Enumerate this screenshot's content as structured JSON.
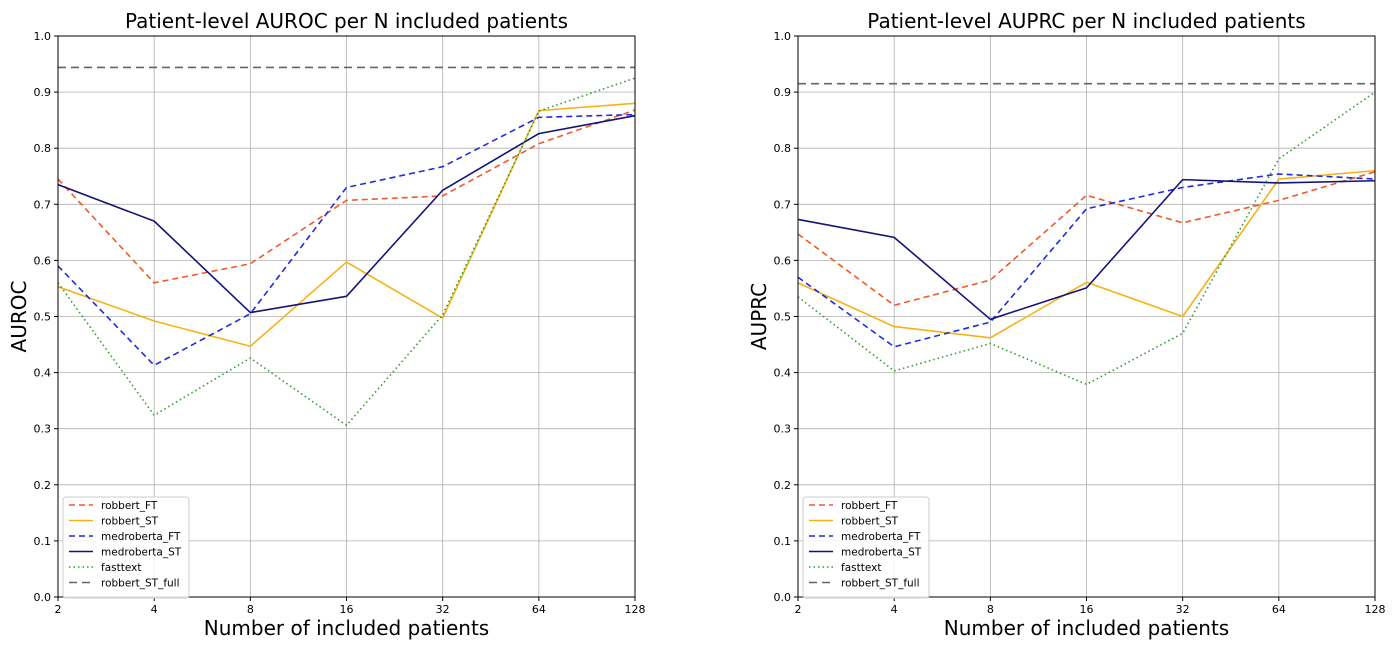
{
  "chart_data": [
    {
      "type": "line",
      "title": "Patient-level AUROC per N included patients",
      "xlabel": "Number of included patients",
      "ylabel": "AUROC",
      "x_scale": "log2",
      "x": [
        2,
        4,
        8,
        16,
        32,
        64,
        128
      ],
      "x_tick_labels": [
        "2",
        "4",
        "8",
        "16",
        "32",
        "64",
        "128"
      ],
      "ylim": [
        0.0,
        1.0
      ],
      "y_tick_labels": [
        "0.0",
        "0.1",
        "0.2",
        "0.3",
        "0.4",
        "0.5",
        "0.6",
        "0.7",
        "0.8",
        "0.9",
        "1.0"
      ],
      "grid": true,
      "legend_position": "lower-left",
      "series": [
        {
          "name": "robbert_FT",
          "color": "#f05a28",
          "style": "dashed",
          "values": [
            0.745,
            0.56,
            0.594,
            0.707,
            0.715,
            0.808,
            0.868
          ]
        },
        {
          "name": "robbert_ST",
          "color": "#f5b215",
          "style": "solid",
          "values": [
            0.553,
            0.492,
            0.447,
            0.597,
            0.497,
            0.867,
            0.88
          ]
        },
        {
          "name": "medroberta_FT",
          "color": "#1f2bde",
          "style": "dashed",
          "values": [
            0.59,
            0.413,
            0.505,
            0.73,
            0.767,
            0.855,
            0.86
          ]
        },
        {
          "name": "medroberta_ST",
          "color": "#14137a",
          "style": "solid",
          "values": [
            0.735,
            0.67,
            0.507,
            0.536,
            0.725,
            0.826,
            0.858
          ]
        },
        {
          "name": "fasttext",
          "color": "#2e9e2e",
          "style": "dotted",
          "values": [
            0.56,
            0.324,
            0.426,
            0.306,
            0.503,
            0.866,
            0.925
          ]
        },
        {
          "name": "robbert_ST_full",
          "color": "#666666",
          "style": "dashed-long",
          "constant": 0.944
        }
      ]
    },
    {
      "type": "line",
      "title": "Patient-level AUPRC per N included patients",
      "xlabel": "Number of included patients",
      "ylabel": "AUPRC",
      "x_scale": "log2",
      "x": [
        2,
        4,
        8,
        16,
        32,
        64,
        128
      ],
      "x_tick_labels": [
        "2",
        "4",
        "8",
        "16",
        "32",
        "64",
        "128"
      ],
      "ylim": [
        0.0,
        1.0
      ],
      "y_tick_labels": [
        "0.0",
        "0.1",
        "0.2",
        "0.3",
        "0.4",
        "0.5",
        "0.6",
        "0.7",
        "0.8",
        "0.9",
        "1.0"
      ],
      "grid": true,
      "legend_position": "lower-left",
      "series": [
        {
          "name": "robbert_FT",
          "color": "#f05a28",
          "style": "dashed",
          "values": [
            0.647,
            0.52,
            0.565,
            0.716,
            0.667,
            0.707,
            0.758
          ]
        },
        {
          "name": "robbert_ST",
          "color": "#f5b215",
          "style": "solid",
          "values": [
            0.56,
            0.482,
            0.462,
            0.561,
            0.5,
            0.745,
            0.76
          ]
        },
        {
          "name": "medroberta_FT",
          "color": "#1f2bde",
          "style": "dashed",
          "values": [
            0.57,
            0.446,
            0.49,
            0.692,
            0.73,
            0.754,
            0.745
          ]
        },
        {
          "name": "medroberta_ST",
          "color": "#14137a",
          "style": "solid",
          "values": [
            0.673,
            0.641,
            0.495,
            0.551,
            0.744,
            0.738,
            0.742
          ]
        },
        {
          "name": "fasttext",
          "color": "#2e9e2e",
          "style": "dotted",
          "values": [
            0.535,
            0.403,
            0.452,
            0.379,
            0.47,
            0.781,
            0.9
          ]
        },
        {
          "name": "robbert_ST_full",
          "color": "#666666",
          "style": "dashed-long",
          "constant": 0.915
        }
      ]
    }
  ]
}
